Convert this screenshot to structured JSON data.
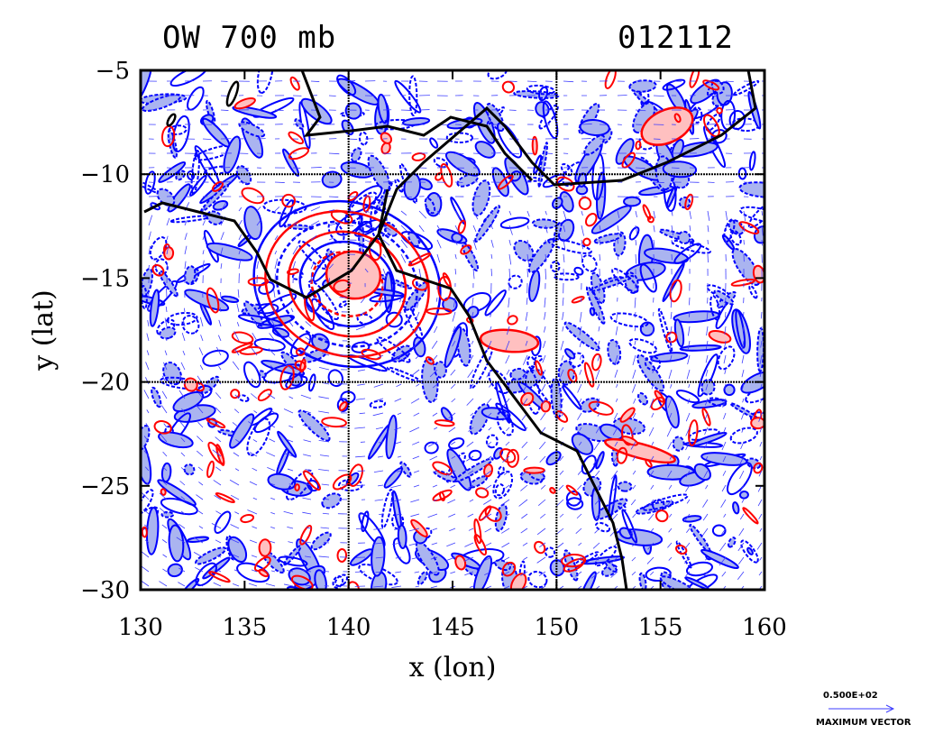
{
  "chart_data": {
    "type": "vector-field-contour-map",
    "title_left": "OW 700 mb",
    "title_right": "012112",
    "xlabel": "x (lon)",
    "ylabel": "y (lat)",
    "xlim": [
      130,
      160
    ],
    "ylim": [
      -30,
      -5
    ],
    "xticks": [
      130,
      135,
      140,
      145,
      150,
      155,
      160
    ],
    "yticks": [
      -5,
      -10,
      -15,
      -20,
      -25,
      -30
    ],
    "grid_lines": {
      "x": [
        140,
        150
      ],
      "y": [
        -10,
        -20
      ]
    },
    "colors": {
      "positive_contour": "#ff0000",
      "positive_fill": "#ffc0c0",
      "negative_contour": "#0000ff",
      "negative_fill": "#aab4f0",
      "vector": "#3c3cff",
      "coastline": "#000000"
    },
    "legend": {
      "vector_scale": "0.500E+02",
      "vector_label": "MAXIMUM VECTOR"
    }
  }
}
